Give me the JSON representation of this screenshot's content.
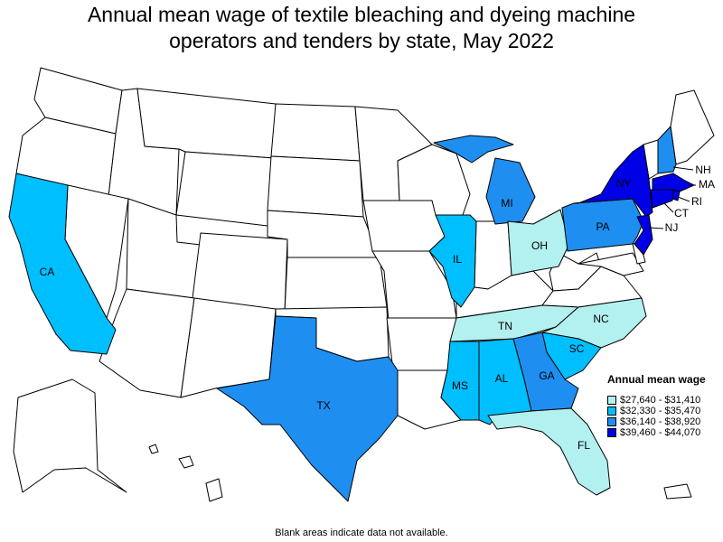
{
  "title_line1": "Annual mean wage of textile bleaching and dyeing machine",
  "title_line2": "operators and tenders by state, May 2022",
  "legend": {
    "title": "Annual mean wage",
    "items": [
      {
        "label": "$27,640 - $31,410",
        "color": "#b3f0f0"
      },
      {
        "label": "$32,330 - $35,470",
        "color": "#00bfff"
      },
      {
        "label": "$36,140 - $38,920",
        "color": "#1e8ff0"
      },
      {
        "label": "$39,460 - $44,070",
        "color": "#0000e6"
      }
    ]
  },
  "footnote": "Blank areas indicate data not available.",
  "chart_data": {
    "type": "choropleth",
    "states": [
      {
        "abbr": "CA",
        "bin": 1
      },
      {
        "abbr": "TX",
        "bin": 2
      },
      {
        "abbr": "IL",
        "bin": 1
      },
      {
        "abbr": "MI",
        "bin": 2
      },
      {
        "abbr": "OH",
        "bin": 0
      },
      {
        "abbr": "PA",
        "bin": 2
      },
      {
        "abbr": "NY",
        "bin": 3
      },
      {
        "abbr": "NJ",
        "bin": 3
      },
      {
        "abbr": "NH",
        "bin": 2
      },
      {
        "abbr": "MA",
        "bin": 3
      },
      {
        "abbr": "RI",
        "bin": 3
      },
      {
        "abbr": "CT",
        "bin": 3
      },
      {
        "abbr": "TN",
        "bin": 0
      },
      {
        "abbr": "NC",
        "bin": 0
      },
      {
        "abbr": "SC",
        "bin": 1
      },
      {
        "abbr": "GA",
        "bin": 2
      },
      {
        "abbr": "AL",
        "bin": 1
      },
      {
        "abbr": "MS",
        "bin": 1
      },
      {
        "abbr": "FL",
        "bin": 0
      }
    ]
  }
}
